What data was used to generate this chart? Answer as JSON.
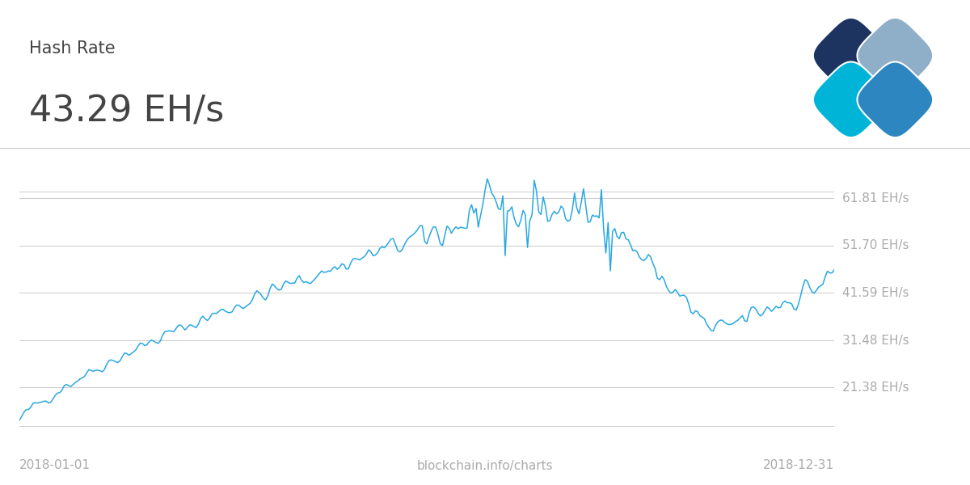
{
  "title_label": "Hash Rate",
  "subtitle": "43.29 EH/s",
  "x_left_label": "2018-01-01",
  "x_center_label": "blockchain.info/charts",
  "x_right_label": "2018-12-31",
  "line_color": "#29a8e0",
  "background_color": "#f5f5f5",
  "ytick_labels": [
    "21.38 EH/s",
    "31.48 EH/s",
    "41.59 EH/s",
    "51.70 EH/s",
    "61.81 EH/s"
  ],
  "ytick_values": [
    21.38,
    31.48,
    41.59,
    51.7,
    61.81
  ],
  "ymin": 13.0,
  "ymax": 70.0,
  "grid_color": "#cccccc",
  "label_color": "#aaaaaa",
  "title_color": "#444444",
  "logo_colors": [
    "#1d3461",
    "#8faec8",
    "#2e86c1",
    "#00b4d8"
  ]
}
